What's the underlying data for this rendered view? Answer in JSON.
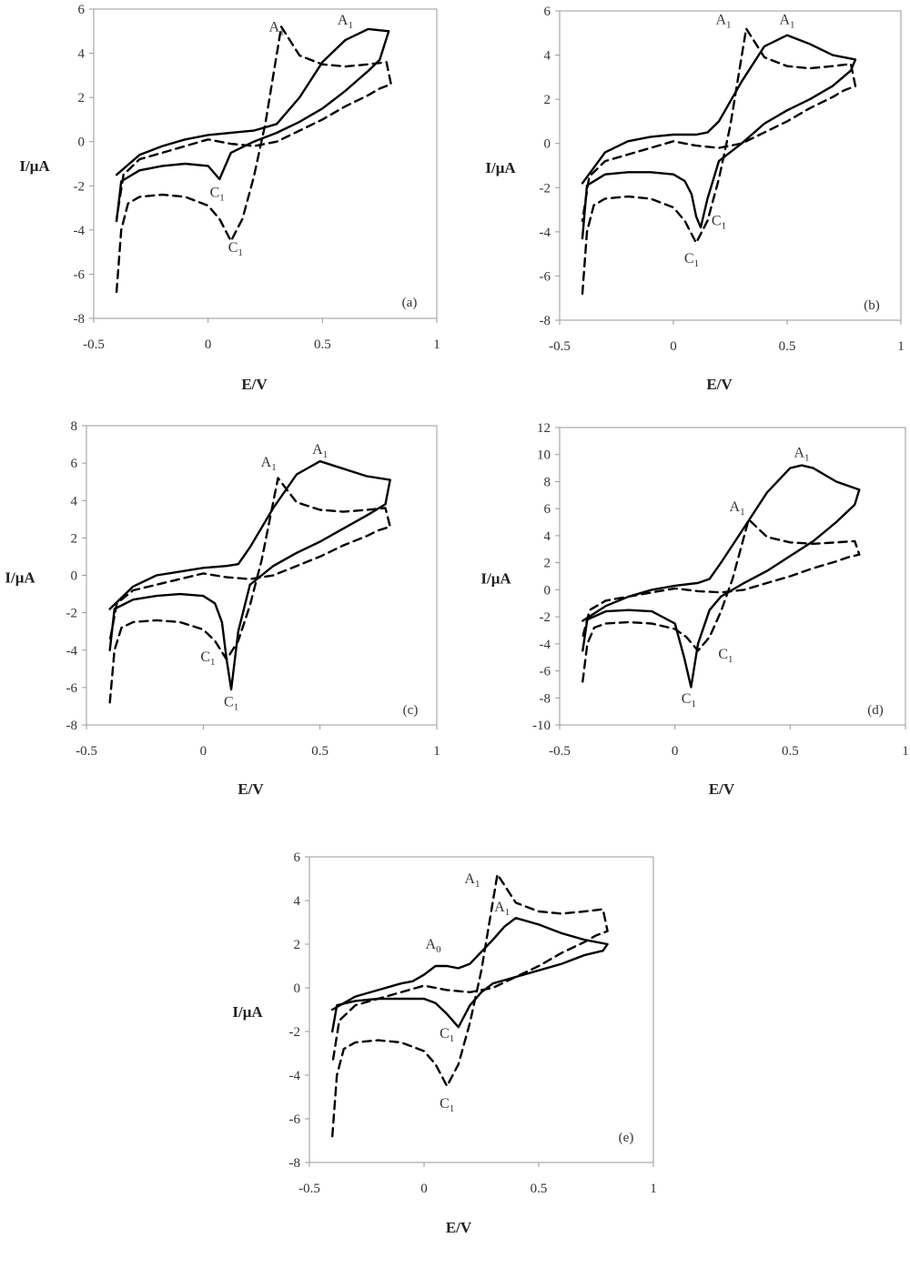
{
  "chart_data": [
    {
      "panel_label": "(a)",
      "type": "line",
      "xlabel": "E/V",
      "ylabel": "I/μA",
      "xlim": [
        -0.5,
        1
      ],
      "ylim": [
        -8,
        6
      ],
      "xticks": [
        -0.5,
        0,
        0.5,
        1
      ],
      "yticks": [
        -8,
        -6,
        -4,
        -2,
        0,
        2,
        4,
        6
      ],
      "grid": false,
      "series": [
        {
          "style": "solid",
          "x": [
            -0.4,
            -0.3,
            -0.2,
            -0.1,
            0.0,
            0.1,
            0.2,
            0.3,
            0.4,
            0.5,
            0.6,
            0.7,
            0.79,
            0.75,
            0.7,
            0.6,
            0.5,
            0.4,
            0.3,
            0.2,
            0.1,
            0.05,
            0.0,
            -0.1,
            -0.2,
            -0.3,
            -0.38,
            -0.4
          ],
          "y": [
            -1.5,
            -0.6,
            -0.2,
            0.1,
            0.3,
            0.4,
            0.5,
            0.8,
            2.0,
            3.6,
            4.6,
            5.1,
            5.0,
            3.7,
            3.2,
            2.3,
            1.5,
            0.9,
            0.4,
            0.0,
            -0.5,
            -1.7,
            -1.1,
            -1.0,
            -1.1,
            -1.3,
            -1.8,
            -3.6
          ]
        },
        {
          "style": "dashed",
          "x": [
            -0.4,
            -0.38,
            -0.35,
            -0.3,
            -0.2,
            -0.1,
            0.0,
            0.05,
            0.1,
            0.15,
            0.2,
            0.25,
            0.32,
            0.4,
            0.5,
            0.6,
            0.7,
            0.78,
            0.8,
            0.75,
            0.7,
            0.6,
            0.5,
            0.4,
            0.3,
            0.2,
            0.1,
            0.0,
            -0.1,
            -0.2,
            -0.3,
            -0.37,
            -0.4
          ],
          "y": [
            -6.8,
            -4.0,
            -2.8,
            -2.5,
            -2.4,
            -2.5,
            -2.9,
            -3.5,
            -4.5,
            -3.5,
            -1.6,
            0.8,
            5.2,
            3.9,
            3.5,
            3.4,
            3.5,
            3.6,
            2.6,
            2.4,
            2.1,
            1.6,
            1.0,
            0.5,
            0.0,
            -0.2,
            -0.1,
            0.1,
            -0.2,
            -0.5,
            -0.8,
            -1.5,
            -3.5
          ]
        }
      ],
      "annotations": [
        {
          "base": "A",
          "sub": "1",
          "x": 0.3,
          "y": 5.0
        },
        {
          "base": "A",
          "sub": "1",
          "x": 0.6,
          "y": 5.3
        },
        {
          "base": "C",
          "sub": "1",
          "x": 0.04,
          "y": -2.5
        },
        {
          "base": "C",
          "sub": "1",
          "x": 0.12,
          "y": -5.0
        }
      ]
    },
    {
      "panel_label": "(b)",
      "type": "line",
      "xlabel": "E/V",
      "ylabel": "I/μA",
      "xlim": [
        -0.5,
        1
      ],
      "ylim": [
        -8,
        6
      ],
      "xticks": [
        -0.5,
        0,
        0.5,
        1
      ],
      "yticks": [
        -8,
        -6,
        -4,
        -2,
        0,
        2,
        4,
        6
      ],
      "grid": false,
      "series": [
        {
          "style": "solid",
          "x": [
            -0.4,
            -0.3,
            -0.2,
            -0.1,
            0.0,
            0.1,
            0.15,
            0.2,
            0.3,
            0.4,
            0.5,
            0.6,
            0.7,
            0.8,
            0.78,
            0.7,
            0.6,
            0.5,
            0.4,
            0.3,
            0.2,
            0.15,
            0.12,
            0.1,
            0.08,
            0.05,
            0.0,
            -0.1,
            -0.2,
            -0.3,
            -0.38,
            -0.4
          ],
          "y": [
            -1.8,
            -0.4,
            0.1,
            0.3,
            0.4,
            0.4,
            0.5,
            1.0,
            2.8,
            4.4,
            4.9,
            4.5,
            4.0,
            3.8,
            3.3,
            2.6,
            2.0,
            1.5,
            0.9,
            0.0,
            -0.8,
            -2.5,
            -3.8,
            -3.3,
            -2.3,
            -1.7,
            -1.4,
            -1.3,
            -1.3,
            -1.4,
            -1.9,
            -4.3
          ]
        },
        {
          "style": "dashed",
          "x": [
            -0.4,
            -0.38,
            -0.35,
            -0.3,
            -0.2,
            -0.1,
            0.0,
            0.05,
            0.1,
            0.15,
            0.2,
            0.25,
            0.32,
            0.4,
            0.5,
            0.6,
            0.7,
            0.78,
            0.8,
            0.75,
            0.7,
            0.6,
            0.5,
            0.4,
            0.3,
            0.2,
            0.1,
            0.0,
            -0.1,
            -0.2,
            -0.3,
            -0.37,
            -0.4
          ],
          "y": [
            -6.8,
            -4.0,
            -2.8,
            -2.5,
            -2.4,
            -2.5,
            -2.9,
            -3.5,
            -4.5,
            -3.5,
            -1.6,
            0.8,
            5.2,
            3.9,
            3.5,
            3.4,
            3.5,
            3.6,
            2.6,
            2.4,
            2.1,
            1.6,
            1.0,
            0.5,
            0.0,
            -0.2,
            -0.1,
            0.1,
            -0.2,
            -0.5,
            -0.8,
            -1.5,
            -3.5
          ]
        }
      ],
      "annotations": [
        {
          "base": "A",
          "sub": "1",
          "x": 0.22,
          "y": 5.4
        },
        {
          "base": "A",
          "sub": "1",
          "x": 0.5,
          "y": 5.4
        },
        {
          "base": "C",
          "sub": "1",
          "x": 0.2,
          "y": -3.7
        },
        {
          "base": "C",
          "sub": "1",
          "x": 0.08,
          "y": -5.4
        }
      ]
    },
    {
      "panel_label": "(c)",
      "type": "line",
      "xlabel": "E/V",
      "ylabel": "I/μA",
      "xlim": [
        -0.5,
        1
      ],
      "ylim": [
        -8,
        8
      ],
      "xticks": [
        -0.5,
        0,
        0.5,
        1
      ],
      "yticks": [
        -8,
        -6,
        -4,
        -2,
        0,
        2,
        4,
        6,
        8
      ],
      "grid": false,
      "series": [
        {
          "style": "solid",
          "x": [
            -0.4,
            -0.3,
            -0.2,
            -0.1,
            0.0,
            0.1,
            0.15,
            0.2,
            0.3,
            0.4,
            0.5,
            0.6,
            0.7,
            0.8,
            0.78,
            0.7,
            0.6,
            0.5,
            0.4,
            0.3,
            0.2,
            0.15,
            0.12,
            0.1,
            0.08,
            0.05,
            0.0,
            -0.1,
            -0.2,
            -0.3,
            -0.38,
            -0.4
          ],
          "y": [
            -1.8,
            -0.6,
            0.0,
            0.2,
            0.4,
            0.5,
            0.6,
            1.5,
            3.6,
            5.4,
            6.1,
            5.7,
            5.3,
            5.1,
            3.8,
            3.2,
            2.5,
            1.8,
            1.2,
            0.5,
            -0.5,
            -3.0,
            -6.1,
            -4.5,
            -2.5,
            -1.5,
            -1.1,
            -1.0,
            -1.1,
            -1.3,
            -1.8,
            -4.0
          ]
        },
        {
          "style": "dashed",
          "x": [
            -0.4,
            -0.38,
            -0.35,
            -0.3,
            -0.2,
            -0.1,
            0.0,
            0.05,
            0.1,
            0.15,
            0.2,
            0.25,
            0.32,
            0.4,
            0.5,
            0.6,
            0.7,
            0.78,
            0.8,
            0.75,
            0.7,
            0.6,
            0.5,
            0.4,
            0.3,
            0.2,
            0.1,
            0.0,
            -0.1,
            -0.2,
            -0.3,
            -0.37,
            -0.4
          ],
          "y": [
            -6.8,
            -4.0,
            -2.8,
            -2.5,
            -2.4,
            -2.5,
            -2.9,
            -3.5,
            -4.5,
            -3.5,
            -1.6,
            0.8,
            5.2,
            3.9,
            3.5,
            3.4,
            3.5,
            3.6,
            2.6,
            2.4,
            2.1,
            1.6,
            1.0,
            0.5,
            0.0,
            -0.2,
            -0.1,
            0.1,
            -0.2,
            -0.5,
            -0.8,
            -1.5,
            -3.5
          ]
        }
      ],
      "annotations": [
        {
          "base": "A",
          "sub": "1",
          "x": 0.28,
          "y": 5.8
        },
        {
          "base": "A",
          "sub": "1",
          "x": 0.5,
          "y": 6.5
        },
        {
          "base": "C",
          "sub": "1",
          "x": 0.02,
          "y": -4.6
        },
        {
          "base": "C",
          "sub": "1",
          "x": 0.12,
          "y": -7.0
        }
      ]
    },
    {
      "panel_label": "(d)",
      "type": "line",
      "xlabel": "E/V",
      "ylabel": "I/μA",
      "xlim": [
        -0.5,
        1
      ],
      "ylim": [
        -10,
        12
      ],
      "xticks": [
        -0.5,
        0,
        0.5,
        1
      ],
      "yticks": [
        -10,
        -8,
        -6,
        -4,
        -2,
        0,
        2,
        4,
        6,
        8,
        10,
        12
      ],
      "grid": false,
      "series": [
        {
          "style": "solid",
          "x": [
            -0.4,
            -0.3,
            -0.2,
            -0.1,
            0.0,
            0.1,
            0.15,
            0.2,
            0.3,
            0.4,
            0.5,
            0.55,
            0.6,
            0.7,
            0.8,
            0.78,
            0.7,
            0.6,
            0.5,
            0.4,
            0.3,
            0.2,
            0.15,
            0.1,
            0.07,
            0.04,
            0.0,
            -0.1,
            -0.2,
            -0.3,
            -0.38,
            -0.4
          ],
          "y": [
            -2.3,
            -1.2,
            -0.5,
            0.0,
            0.3,
            0.5,
            0.8,
            2.0,
            4.6,
            7.2,
            9.0,
            9.2,
            9.0,
            8.0,
            7.4,
            6.3,
            5.0,
            3.6,
            2.5,
            1.4,
            0.5,
            -0.5,
            -1.5,
            -4.0,
            -7.2,
            -5.0,
            -2.5,
            -1.6,
            -1.5,
            -1.6,
            -2.2,
            -4.5
          ]
        },
        {
          "style": "dashed",
          "x": [
            -0.4,
            -0.38,
            -0.35,
            -0.3,
            -0.2,
            -0.1,
            0.0,
            0.05,
            0.1,
            0.15,
            0.2,
            0.25,
            0.32,
            0.4,
            0.5,
            0.6,
            0.7,
            0.78,
            0.8,
            0.75,
            0.7,
            0.6,
            0.5,
            0.4,
            0.3,
            0.2,
            0.1,
            0.0,
            -0.1,
            -0.2,
            -0.3,
            -0.37,
            -0.4
          ],
          "y": [
            -6.8,
            -4.0,
            -2.8,
            -2.5,
            -2.4,
            -2.5,
            -2.9,
            -3.5,
            -4.5,
            -3.5,
            -1.6,
            0.8,
            5.2,
            3.9,
            3.5,
            3.4,
            3.5,
            3.6,
            2.6,
            2.4,
            2.1,
            1.6,
            1.0,
            0.5,
            0.0,
            -0.2,
            -0.1,
            0.1,
            -0.2,
            -0.5,
            -0.8,
            -1.5,
            -3.5
          ]
        }
      ],
      "annotations": [
        {
          "base": "A",
          "sub": "1",
          "x": 0.27,
          "y": 5.8
        },
        {
          "base": "A",
          "sub": "1",
          "x": 0.55,
          "y": 9.8
        },
        {
          "base": "C",
          "sub": "1",
          "x": 0.22,
          "y": -5.1
        },
        {
          "base": "C",
          "sub": "1",
          "x": 0.06,
          "y": -8.4
        }
      ]
    },
    {
      "panel_label": "(e)",
      "type": "line",
      "xlabel": "E/V",
      "ylabel": "I/μA",
      "xlim": [
        -0.5,
        1
      ],
      "ylim": [
        -8,
        6
      ],
      "xticks": [
        -0.5,
        0,
        0.5,
        1
      ],
      "yticks": [
        -8,
        -6,
        -4,
        -2,
        0,
        2,
        4,
        6
      ],
      "grid": false,
      "series": [
        {
          "style": "solid",
          "x": [
            -0.4,
            -0.3,
            -0.2,
            -0.1,
            -0.05,
            0.0,
            0.05,
            0.1,
            0.15,
            0.2,
            0.3,
            0.35,
            0.4,
            0.5,
            0.6,
            0.7,
            0.8,
            0.78,
            0.7,
            0.6,
            0.5,
            0.4,
            0.3,
            0.25,
            0.2,
            0.15,
            0.1,
            0.05,
            0.0,
            -0.1,
            -0.2,
            -0.3,
            -0.38,
            -0.4
          ],
          "y": [
            -1.0,
            -0.4,
            -0.1,
            0.2,
            0.3,
            0.6,
            1.0,
            1.0,
            0.9,
            1.1,
            2.2,
            2.8,
            3.2,
            2.9,
            2.5,
            2.2,
            2.0,
            1.7,
            1.5,
            1.1,
            0.8,
            0.5,
            0.2,
            -0.2,
            -0.8,
            -1.8,
            -1.2,
            -0.7,
            -0.5,
            -0.5,
            -0.5,
            -0.6,
            -0.8,
            -2.0
          ]
        },
        {
          "style": "dashed",
          "x": [
            -0.4,
            -0.38,
            -0.35,
            -0.3,
            -0.2,
            -0.1,
            0.0,
            0.05,
            0.1,
            0.15,
            0.2,
            0.25,
            0.32,
            0.4,
            0.5,
            0.6,
            0.7,
            0.78,
            0.8,
            0.75,
            0.7,
            0.6,
            0.5,
            0.4,
            0.3,
            0.2,
            0.1,
            0.0,
            -0.1,
            -0.2,
            -0.3,
            -0.37,
            -0.4
          ],
          "y": [
            -6.8,
            -4.0,
            -2.8,
            -2.5,
            -2.4,
            -2.5,
            -2.9,
            -3.5,
            -4.5,
            -3.5,
            -1.6,
            0.8,
            5.2,
            3.9,
            3.5,
            3.4,
            3.5,
            3.6,
            2.6,
            2.4,
            2.1,
            1.6,
            1.0,
            0.5,
            0.0,
            -0.2,
            -0.1,
            0.1,
            -0.2,
            -0.5,
            -0.8,
            -1.5,
            -3.5
          ]
        }
      ],
      "annotations": [
        {
          "base": "A",
          "sub": "1",
          "x": 0.21,
          "y": 4.8
        },
        {
          "base": "A",
          "sub": "1",
          "x": 0.34,
          "y": 3.5
        },
        {
          "base": "A",
          "sub": "0",
          "x": 0.04,
          "y": 1.8
        },
        {
          "base": "C",
          "sub": "1",
          "x": 0.1,
          "y": -2.3
        },
        {
          "base": "C",
          "sub": "1",
          "x": 0.1,
          "y": -5.5
        }
      ]
    }
  ]
}
